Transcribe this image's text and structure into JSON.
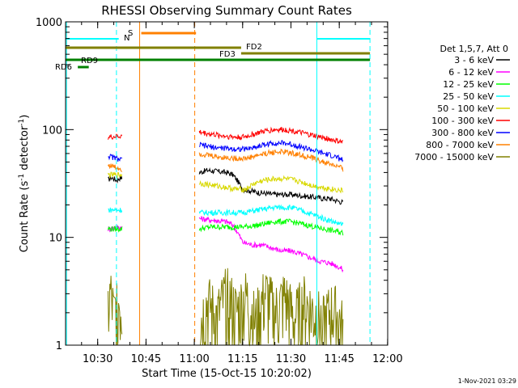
{
  "chart_data": {
    "type": "line",
    "title": "RHESSI Observing Summary Count Rates",
    "xlabel": "Start Time (15-Oct-15 10:20:02)",
    "ylabel_main": "Count Rate (s",
    "ylabel_sup1": "-1",
    "ylabel_mid": " detector",
    "ylabel_sup2": "-1",
    "ylabel_end": ")",
    "yscale": "log",
    "ylim": [
      1,
      1000
    ],
    "xlim_minutes": [
      0,
      100
    ],
    "x_ticks": [
      {
        "label": "10:30",
        "minute": 9.97
      },
      {
        "label": "10:45",
        "minute": 24.97
      },
      {
        "label": "11:00",
        "minute": 39.97
      },
      {
        "label": "11:15",
        "minute": 54.97
      },
      {
        "label": "11:30",
        "minute": 69.97
      },
      {
        "label": "11:45",
        "minute": 84.97
      },
      {
        "label": "12:00",
        "minute": 99.97
      }
    ],
    "y_ticks": [
      {
        "label": "1",
        "value": 1
      },
      {
        "label": "10",
        "value": 10
      },
      {
        "label": "100",
        "value": 100
      },
      {
        "label": "1000",
        "value": 1000
      }
    ],
    "legend_title": "Det 1,5,7, Att 0",
    "legend_placement": "right",
    "series": [
      {
        "name": "3 - 6 keV",
        "color": "#000000",
        "segments": [
          [
            [
              13.2,
              34
            ],
            [
              14,
              36
            ],
            [
              15,
              35
            ],
            [
              16,
              34
            ],
            [
              17,
              36
            ],
            [
              17.6,
              35
            ]
          ],
          [
            [
              41.5,
              40
            ],
            [
              44,
              42
            ],
            [
              47,
              41
            ],
            [
              50,
              40
            ],
            [
              52,
              38
            ],
            [
              55,
              28
            ],
            [
              60,
              26
            ],
            [
              65,
              25
            ],
            [
              70,
              25
            ],
            [
              75,
              24
            ],
            [
              80,
              23
            ],
            [
              82,
              23
            ],
            [
              84,
              22
            ],
            [
              86.2,
              21
            ]
          ]
        ]
      },
      {
        "name": "6 - 12 keV",
        "color": "#ff00ff",
        "segments": [
          [
            [
              13.2,
              12
            ],
            [
              17.6,
              12.5
            ]
          ],
          [
            [
              41.5,
              15
            ],
            [
              45,
              14.5
            ],
            [
              50,
              14
            ],
            [
              52,
              13
            ],
            [
              55,
              9
            ],
            [
              58,
              8.5
            ],
            [
              61,
              8.5
            ],
            [
              64,
              8
            ],
            [
              67,
              7.5
            ],
            [
              70,
              7.5
            ],
            [
              73,
              7
            ],
            [
              76,
              6.5
            ],
            [
              79,
              6
            ],
            [
              82,
              5.8
            ],
            [
              84,
              5.5
            ],
            [
              86.2,
              5
            ]
          ]
        ]
      },
      {
        "name": "12 - 25 keV",
        "color": "#00ff00",
        "segments": [
          [
            [
              13.2,
              12
            ],
            [
              17.6,
              12
            ]
          ],
          [
            [
              41.5,
              12
            ],
            [
              45,
              12.5
            ],
            [
              50,
              12.5
            ],
            [
              55,
              12.5
            ],
            [
              60,
              13
            ],
            [
              65,
              14
            ],
            [
              70,
              14
            ],
            [
              75,
              13
            ],
            [
              80,
              12
            ],
            [
              86.2,
              11
            ]
          ]
        ]
      },
      {
        "name": "25 - 50 keV",
        "color": "#00ffff",
        "segments": [
          [
            [
              13.2,
              18
            ],
            [
              17.6,
              18
            ]
          ],
          [
            [
              41.5,
              17
            ],
            [
              45,
              17
            ],
            [
              50,
              17
            ],
            [
              55,
              17
            ],
            [
              60,
              18
            ],
            [
              65,
              19
            ],
            [
              70,
              19
            ],
            [
              75,
              17
            ],
            [
              80,
              15
            ],
            [
              86.2,
              13
            ]
          ]
        ]
      },
      {
        "name": "50 - 100 keV",
        "color": "#d8d800",
        "segments": [
          [
            [
              13.2,
              38
            ],
            [
              17.6,
              38
            ]
          ],
          [
            [
              41.5,
              32
            ],
            [
              44,
              31
            ],
            [
              47,
              30
            ],
            [
              50,
              29
            ],
            [
              53,
              28
            ],
            [
              56,
              28
            ],
            [
              59,
              32
            ],
            [
              62,
              34
            ],
            [
              65,
              35
            ],
            [
              68,
              35
            ],
            [
              71,
              34
            ],
            [
              74,
              32
            ],
            [
              77,
              30
            ],
            [
              80,
              29
            ],
            [
              83,
              28
            ],
            [
              86.2,
              27
            ]
          ]
        ]
      },
      {
        "name": "100 - 300 keV",
        "color": "#ff0000",
        "segments": [
          [
            [
              13.2,
              85
            ],
            [
              17.6,
              87
            ]
          ],
          [
            [
              41.5,
              95
            ],
            [
              44,
              92
            ],
            [
              47,
              89
            ],
            [
              50,
              87
            ],
            [
              53,
              85
            ],
            [
              56,
              86
            ],
            [
              59,
              92
            ],
            [
              62,
              97
            ],
            [
              65,
              100
            ],
            [
              68,
              100
            ],
            [
              71,
              97
            ],
            [
              74,
              92
            ],
            [
              77,
              88
            ],
            [
              80,
              84
            ],
            [
              83,
              80
            ],
            [
              86.2,
              76
            ]
          ]
        ]
      },
      {
        "name": "300 - 800 keV",
        "color": "#0000ff",
        "segments": [
          [
            [
              13.2,
              57
            ],
            [
              17.6,
              52
            ]
          ],
          [
            [
              41.5,
              72
            ],
            [
              44,
              70
            ],
            [
              47,
              68
            ],
            [
              50,
              67
            ],
            [
              53,
              66
            ],
            [
              56,
              66
            ],
            [
              59,
              69
            ],
            [
              62,
              73
            ],
            [
              65,
              75
            ],
            [
              68,
              75
            ],
            [
              71,
              72
            ],
            [
              74,
              68
            ],
            [
              77,
              64
            ],
            [
              80,
              60
            ],
            [
              83,
              57
            ],
            [
              86.2,
              52
            ]
          ]
        ]
      },
      {
        "name": "800 - 7000 keV",
        "color": "#ff8000",
        "segments": [
          [
            [
              13.2,
              47
            ],
            [
              17.6,
              43
            ]
          ],
          [
            [
              41.5,
              60
            ],
            [
              44,
              58
            ],
            [
              47,
              56
            ],
            [
              50,
              55
            ],
            [
              53,
              54
            ],
            [
              56,
              54
            ],
            [
              59,
              57
            ],
            [
              62,
              60
            ],
            [
              65,
              62
            ],
            [
              68,
              62
            ],
            [
              71,
              60
            ],
            [
              74,
              57
            ],
            [
              77,
              54
            ],
            [
              80,
              50
            ],
            [
              83,
              47
            ],
            [
              86.2,
              43
            ]
          ]
        ]
      },
      {
        "name": "7000 - 15000 keV",
        "color": "#808000",
        "segments": [
          [
            [
              13.2,
              2.2
            ],
            [
              14,
              3
            ],
            [
              15,
              1.8
            ],
            [
              16,
              2.6
            ],
            [
              17,
              2.4
            ],
            [
              17.6,
              2
            ]
          ],
          [
            [
              41.5,
              1.5
            ],
            [
              44,
              2.5
            ],
            [
              47,
              1.8
            ],
            [
              50,
              3
            ],
            [
              53,
              2
            ],
            [
              56,
              2.8
            ],
            [
              59,
              1.6
            ],
            [
              62,
              3
            ],
            [
              65,
              2
            ],
            [
              68,
              2.8
            ],
            [
              71,
              1.7
            ],
            [
              74,
              2.5
            ],
            [
              77,
              2
            ],
            [
              80,
              1.6
            ],
            [
              83,
              2.2
            ],
            [
              86.2,
              1.4
            ]
          ]
        ]
      }
    ],
    "annotations": {
      "attenuator_label": "N",
      "attenuator_color": "#00ffff",
      "saa_label": "S",
      "saa_color": "#ff8000",
      "fd2_label": "FD2",
      "fd3_label": "FD3",
      "rd6_label": "RD6",
      "rd9_label": "RD9"
    },
    "timestamp": "1-Nov-2021 03:29"
  }
}
